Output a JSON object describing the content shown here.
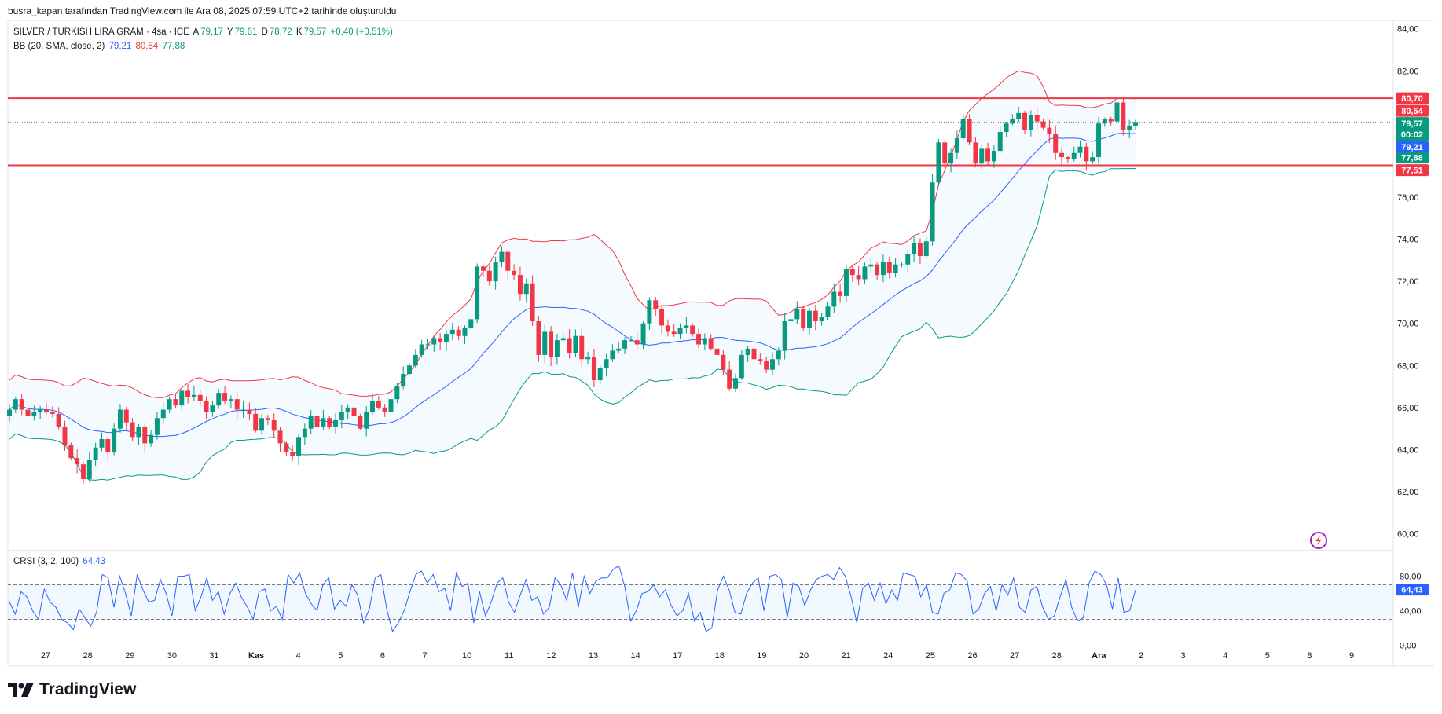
{
  "caption": "busra_kapan tarafından TradingView.com ile Ara 08, 2025 07:59 UTC+2 tarihinde oluşturuldu",
  "legend": {
    "symbol": "SILVER / TURKISH LIRA GRAM · 4sa · ICE",
    "open_label": "A",
    "open": "79,17",
    "high_label": "Y",
    "high": "79,61",
    "low_label": "D",
    "low": "78,72",
    "close_label": "K",
    "close": "79,57",
    "change": "+0,40 (+0,51%)",
    "bb_label": "BB (20, SMA, close, 2)",
    "bb_basis": "79,21",
    "bb_upper": "80,54",
    "bb_lower": "77,88",
    "crsi_label": "CRSI (3, 2, 100)",
    "crsi_value": "64,43"
  },
  "brand": "TradingView",
  "colors": {
    "up": "#089981",
    "down": "#f23645",
    "basis": "#2962ff",
    "upper": "#f23645",
    "lower": "#089981",
    "hline": "#f23645",
    "crsi": "#2962ff"
  },
  "chart_data": [
    {
      "type": "candlestick",
      "y_ticks": [
        "84,00",
        "82,00",
        "80,00",
        "78,00",
        "76,00",
        "74,00",
        "72,00",
        "70,00",
        "68,00",
        "66,00",
        "64,00",
        "62,00",
        "60,00"
      ],
      "ylim": [
        59.2,
        84.4
      ],
      "x_labels": [
        "27",
        "28",
        "29",
        "30",
        "31",
        "Kas",
        "4",
        "5",
        "6",
        "7",
        "10",
        "11",
        "12",
        "13",
        "14",
        "17",
        "18",
        "19",
        "20",
        "21",
        "24",
        "25",
        "26",
        "27",
        "28",
        "Ara",
        "2",
        "3",
        "4",
        "5",
        "8",
        "9"
      ],
      "horizontal_lines": [
        80.7,
        77.51
      ],
      "price_badges": [
        {
          "text": "80,70",
          "value": 80.7,
          "color": "#f23645"
        },
        {
          "text": "80,54",
          "value": 80.54,
          "color": "#f23645"
        },
        {
          "text": "79,57",
          "value": 79.57,
          "color": "#089981",
          "sub": "00:02"
        },
        {
          "text": "79,21",
          "value": 79.21,
          "color": "#2962ff"
        },
        {
          "text": "77,88",
          "value": 77.88,
          "color": "#089981"
        },
        {
          "text": "77,51",
          "value": 77.51,
          "color": "#f23645"
        }
      ],
      "closes": [
        65.9,
        66.4,
        65.9,
        65.6,
        65.8,
        65.9,
        65.8,
        65.7,
        65.1,
        64.2,
        63.6,
        63.3,
        62.6,
        63.5,
        64.1,
        64.5,
        63.9,
        65.0,
        65.9,
        65.3,
        64.6,
        65.1,
        64.3,
        64.7,
        65.5,
        65.9,
        66.4,
        66.1,
        66.8,
        66.5,
        66.6,
        66.3,
        65.8,
        66.1,
        66.7,
        66.3,
        66.4,
        65.9,
        65.9,
        65.7,
        64.9,
        65.5,
        65.4,
        64.9,
        64.3,
        63.9,
        63.7,
        64.6,
        65.0,
        65.6,
        65.1,
        65.5,
        65.1,
        65.4,
        65.8,
        66.0,
        65.6,
        65.0,
        65.8,
        66.3,
        66.0,
        65.8,
        66.4,
        67.0,
        67.6,
        68.0,
        68.5,
        69.0,
        69.0,
        69.3,
        69.1,
        69.5,
        69.7,
        69.4,
        69.8,
        70.2,
        72.7,
        72.5,
        72.0,
        72.9,
        73.4,
        72.5,
        72.3,
        71.4,
        71.9,
        70.1,
        68.5,
        69.6,
        68.4,
        69.2,
        69.3,
        68.6,
        69.4,
        68.3,
        68.4,
        67.3,
        67.9,
        68.3,
        68.7,
        68.8,
        69.2,
        69.2,
        69.0,
        70.0,
        71.1,
        70.7,
        69.9,
        69.6,
        69.5,
        69.8,
        69.9,
        69.5,
        69.0,
        69.3,
        68.8,
        68.5,
        67.8,
        66.9,
        67.4,
        68.5,
        68.8,
        68.3,
        68.2,
        67.8,
        68.3,
        68.7,
        70.1,
        70.2,
        70.7,
        69.8,
        70.6,
        70.1,
        70.3,
        70.8,
        71.5,
        71.3,
        72.6,
        72.3,
        72.1,
        72.7,
        72.8,
        72.3,
        72.9,
        72.4,
        72.8,
        72.8,
        73.3,
        73.8,
        73.2,
        73.9,
        76.7,
        78.6,
        77.6,
        78.1,
        78.8,
        79.7,
        78.6,
        77.6,
        78.3,
        77.7,
        78.2,
        79.1,
        79.5,
        79.7,
        80.0,
        79.2,
        79.9,
        79.6,
        79.3,
        79.0,
        78.1,
        77.9,
        77.8,
        78.1,
        78.4,
        77.7,
        77.9,
        79.5,
        79.7,
        79.6,
        80.5,
        79.2,
        79.4,
        79.57
      ],
      "bb_upper_start": 69.0,
      "bb_lower_start": 63.6,
      "crsi_ticks": [
        "80,00",
        "40,00",
        "0,00"
      ],
      "crsi_ylim": [
        -6,
        106
      ],
      "crsi_bands": [
        70,
        30
      ],
      "crsi_values": [
        50,
        36,
        62,
        56,
        40,
        30,
        65,
        50,
        44,
        30,
        26,
        18,
        42,
        32,
        22,
        38,
        82,
        78,
        44,
        80,
        60,
        34,
        82,
        64,
        50,
        52,
        76,
        60,
        34,
        80,
        80,
        82,
        40,
        56,
        78,
        52,
        62,
        36,
        60,
        72,
        55,
        44,
        30,
        62,
        65,
        40,
        45,
        30,
        82,
        72,
        84,
        60,
        48,
        40,
        70,
        78,
        42,
        52,
        45,
        70,
        58,
        26,
        42,
        78,
        82,
        42,
        16,
        26,
        40,
        62,
        82,
        86,
        72,
        82,
        62,
        66,
        40,
        84,
        68,
        72,
        26,
        62,
        34,
        50,
        72,
        78,
        50,
        38,
        58,
        76,
        52,
        56,
        36,
        44,
        78,
        70,
        52,
        84,
        44,
        80,
        60,
        74,
        78,
        78,
        88,
        92,
        68,
        28,
        40,
        60,
        62,
        70,
        56,
        64,
        46,
        34,
        40,
        60,
        28,
        38,
        16,
        20,
        64,
        80,
        64,
        38,
        36,
        60,
        72,
        78,
        40,
        80,
        82,
        76,
        32,
        72,
        68,
        46,
        64,
        76,
        80,
        82,
        76,
        90,
        80,
        56,
        26,
        66,
        72,
        52,
        72,
        48,
        64,
        52,
        84,
        82,
        80,
        56,
        70,
        38,
        36,
        60,
        64,
        84,
        82,
        74,
        36,
        42,
        60,
        68,
        40,
        70,
        58,
        78,
        44,
        38,
        64,
        68,
        44,
        30,
        34,
        56,
        76,
        44,
        28,
        32,
        72,
        86,
        82,
        70,
        42,
        78,
        38,
        40,
        64
      ]
    }
  ]
}
